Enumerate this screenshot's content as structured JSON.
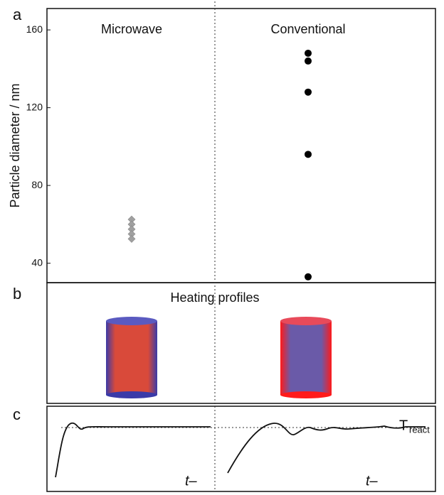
{
  "chart_data": {
    "type": "scatter",
    "panel_label": "a",
    "ylabel": "Particle diameter / nm",
    "ylim": [
      30,
      171
    ],
    "yticks": [
      40,
      80,
      120,
      160
    ],
    "series": [
      {
        "name": "Microwave",
        "color": "#a0a0a0",
        "marker": "diamond",
        "values": [
          62.5,
          60,
          57.5,
          55,
          52.5
        ]
      },
      {
        "name": "Conventional",
        "color": "#000000",
        "marker": "circle",
        "values": [
          148,
          144,
          128,
          96,
          33
        ]
      }
    ]
  },
  "panel_b": {
    "label": "b",
    "title": "Heating profiles"
  },
  "panel_c": {
    "label": "c",
    "x_labels": [
      "t–",
      "t–"
    ],
    "threshold_label": "T",
    "threshold_subscript": "react"
  }
}
